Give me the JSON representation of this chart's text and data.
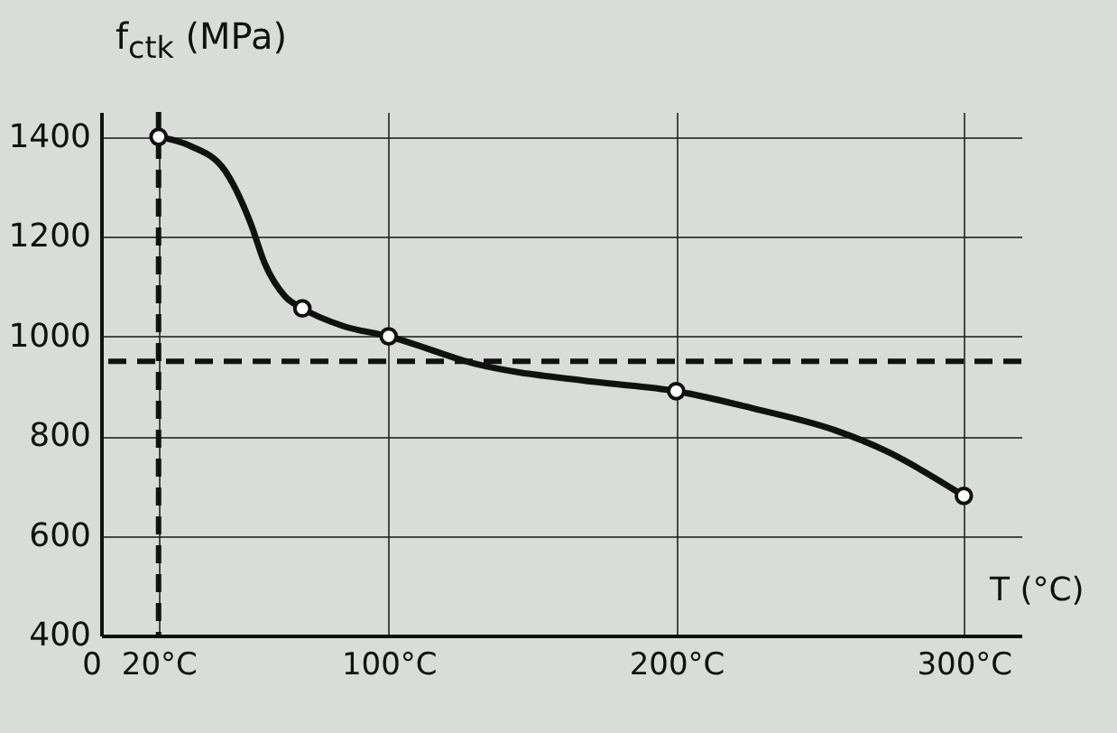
{
  "chart_data": {
    "type": "line",
    "xlabel": "T (°C)",
    "ylabel": "f$_{ctk}$ (MPa)",
    "xlim": [
      0,
      320
    ],
    "ylim": [
      400,
      1450
    ],
    "xticks": [
      0,
      {
        "value": 20,
        "label": "20°C"
      },
      {
        "value": 100,
        "label": "100°C"
      },
      {
        "value": 200,
        "label": "200°C"
      },
      {
        "value": 300,
        "label": "300°C"
      }
    ],
    "yticks": [
      400,
      600,
      800,
      1000,
      1200,
      1400
    ],
    "grid": true,
    "line_style": "solid",
    "series": [
      {
        "color": "#111111",
        "x": [
          20,
          31,
          43,
          52,
          57,
          64,
          70,
          84,
          100,
          130,
          171,
          200,
          227,
          255,
          273,
          300
        ],
        "values": [
          1400,
          1382,
          1333,
          1227,
          1145,
          1080,
          1056,
          1021,
          1000,
          945,
          909,
          890,
          855,
          812,
          770,
          680
        ]
      },
      {
        "type": "scatter",
        "marker": "circle",
        "color": "#111111",
        "x": [
          20,
          70,
          100,
          200,
          300
        ],
        "values": [
          1400,
          1056,
          1000,
          890,
          680
        ]
      }
    ],
    "ref_lines": [
      {
        "axis": "x",
        "value": 20,
        "line_style": "dashed",
        "color": "#111111"
      },
      {
        "axis": "y",
        "value": 950,
        "line_style": "dashed",
        "color": "#111111"
      }
    ]
  }
}
